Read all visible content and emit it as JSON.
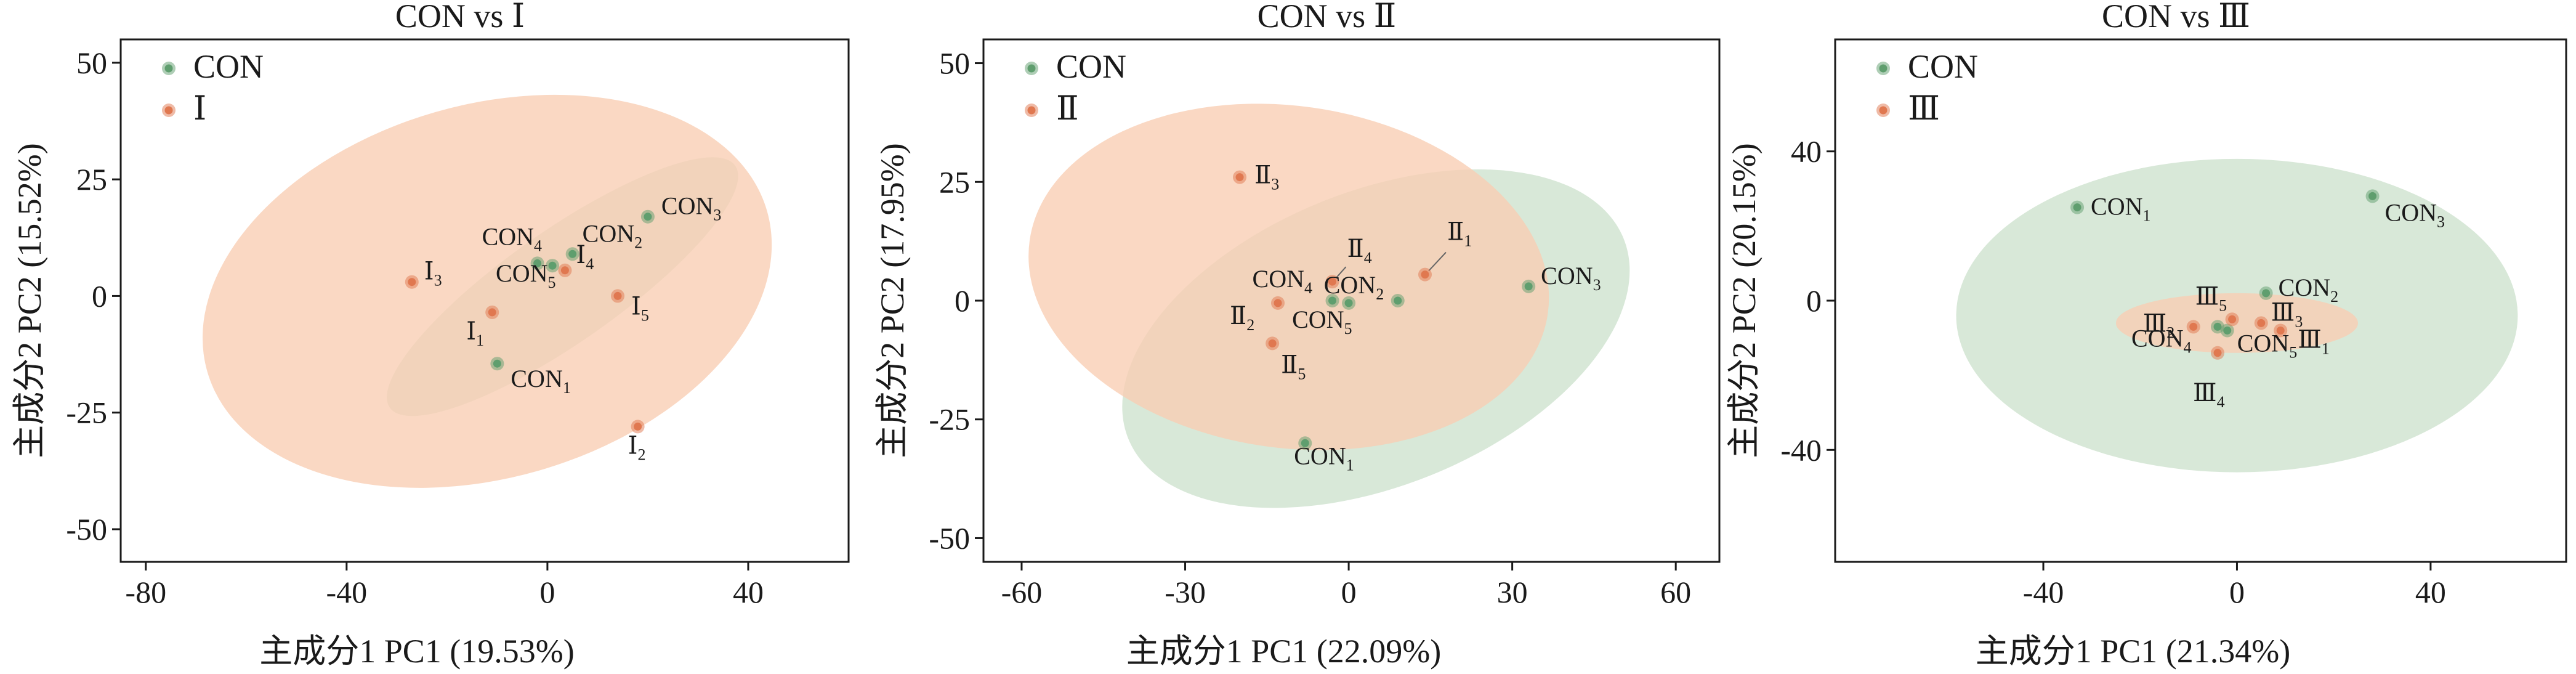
{
  "chart_data": [
    {
      "type": "scatter",
      "title": "CON vs Ⅰ",
      "xlabel": "主成分1 PC1 (19.53%)",
      "ylabel": "主成分2 PC2 (15.52%)",
      "xlim": [
        -85,
        60
      ],
      "ylim": [
        -57,
        55
      ],
      "xticks": [
        -80,
        -40,
        0,
        40
      ],
      "xtick_labels": [
        "-80",
        "-40",
        "0",
        "40"
      ],
      "yticks": [
        -50,
        -25,
        0,
        25,
        50
      ],
      "ytick_labels": [
        "-50",
        "-25",
        "0",
        "25",
        "50"
      ],
      "legend": {
        "placement": "top-left",
        "entries": [
          "CON",
          "Ⅰ"
        ]
      },
      "grid": false,
      "series": [
        {
          "name": "CON",
          "color": "#5f9e6e",
          "ellipse_color": "#cde2cd",
          "ellipse": {
            "cx": 3,
            "cy": 2,
            "rx": 42,
            "ry": 12,
            "angle_deg": 35
          },
          "points": [
            {
              "x": -10,
              "y": -14.5,
              "label": "CON",
              "sub": "1"
            },
            {
              "x": 5,
              "y": 9,
              "label": "CON",
              "sub": "2"
            },
            {
              "x": 20,
              "y": 17,
              "label": "CON",
              "sub": "3"
            },
            {
              "x": -2,
              "y": 7,
              "label": "CON",
              "sub": "4"
            },
            {
              "x": 1,
              "y": 6.5,
              "label": "CON",
              "sub": "5"
            }
          ]
        },
        {
          "name": "Ⅰ",
          "color": "#e07850",
          "ellipse_color": "#f8cdb2",
          "ellipse": {
            "cx": -12,
            "cy": 1,
            "rx": 58,
            "ry": 40,
            "angle_deg": 16
          },
          "points": [
            {
              "x": -11,
              "y": -3.5,
              "label": "Ⅰ",
              "sub": "1"
            },
            {
              "x": 18,
              "y": -28,
              "label": "Ⅰ",
              "sub": "2"
            },
            {
              "x": -27,
              "y": 3,
              "label": "Ⅰ",
              "sub": "3"
            },
            {
              "x": 3.5,
              "y": 5.5,
              "label": "Ⅰ",
              "sub": "4"
            },
            {
              "x": 14,
              "y": 0,
              "label": "Ⅰ",
              "sub": "5"
            }
          ]
        }
      ]
    },
    {
      "type": "scatter",
      "title": "CON vs Ⅱ",
      "xlabel": "主成分1 PC1 (22.09%)",
      "ylabel": "主成分2 PC2 (17.95%)",
      "xlim": [
        -67,
        68
      ],
      "ylim": [
        -55,
        55
      ],
      "xticks": [
        -60,
        -30,
        0,
        30,
        60
      ],
      "xtick_labels": [
        "-60",
        "-30",
        "0",
        "30",
        "60"
      ],
      "yticks": [
        -50,
        -25,
        0,
        25,
        50
      ],
      "ytick_labels": [
        "-50",
        "-25",
        "0",
        "25",
        "50"
      ],
      "legend": {
        "placement": "top-left",
        "entries": [
          "CON",
          "Ⅱ"
        ]
      },
      "grid": false,
      "series": [
        {
          "name": "CON",
          "color": "#5f9e6e",
          "ellipse_color": "#cde2cd",
          "ellipse": {
            "cx": 5,
            "cy": -8,
            "rx": 49,
            "ry": 31,
            "angle_deg": 22
          },
          "points": [
            {
              "x": -8,
              "y": -30,
              "label": "CON",
              "sub": "1"
            },
            {
              "x": 9,
              "y": 0,
              "label": "CON",
              "sub": "2"
            },
            {
              "x": 33,
              "y": 3,
              "label": "CON",
              "sub": "3"
            },
            {
              "x": -3,
              "y": 0,
              "label": "CON",
              "sub": "4"
            },
            {
              "x": 0,
              "y": -0.5,
              "label": "CON",
              "sub": "5"
            }
          ]
        },
        {
          "name": "Ⅱ",
          "color": "#e07850",
          "ellipse_color": "#f8cdb2",
          "ellipse": {
            "cx": -11,
            "cy": 5,
            "rx": 48,
            "ry": 36,
            "angle_deg": -8
          },
          "points": [
            {
              "x": 14,
              "y": 5.5,
              "label": "Ⅱ",
              "sub": "1"
            },
            {
              "x": -13,
              "y": -0.5,
              "label": "Ⅱ",
              "sub": "2"
            },
            {
              "x": -20,
              "y": 26,
              "label": "Ⅱ",
              "sub": "3"
            },
            {
              "x": -3,
              "y": 4,
              "label": "Ⅱ",
              "sub": "4"
            },
            {
              "x": -14,
              "y": -9,
              "label": "Ⅱ",
              "sub": "5"
            }
          ]
        }
      ]
    },
    {
      "type": "scatter",
      "title": "CON vs Ⅲ",
      "xlabel": "主成分1 PC1 (21.34%)",
      "ylabel": "主成分2 PC2 (20.15%)",
      "xlim": [
        -83,
        68
      ],
      "ylim": [
        -70,
        70
      ],
      "xticks": [
        -40,
        0,
        40
      ],
      "xtick_labels": [
        "-40",
        "0",
        "40"
      ],
      "yticks": [
        -40,
        0,
        40
      ],
      "ytick_labels": [
        "-40",
        "0",
        "40"
      ],
      "legend": {
        "placement": "top-left",
        "entries": [
          "CON",
          "Ⅲ"
        ]
      },
      "grid": false,
      "series": [
        {
          "name": "CON",
          "color": "#5f9e6e",
          "ellipse_color": "#cde2cd",
          "ellipse": {
            "cx": 0,
            "cy": -4,
            "rx": 58,
            "ry": 42,
            "angle_deg": 0
          },
          "points": [
            {
              "x": -33,
              "y": 25,
              "label": "CON",
              "sub": "1"
            },
            {
              "x": 6,
              "y": 2,
              "label": "CON",
              "sub": "2"
            },
            {
              "x": 28,
              "y": 28,
              "label": "CON",
              "sub": "3"
            },
            {
              "x": -4,
              "y": -7,
              "label": "CON",
              "sub": "4"
            },
            {
              "x": -2,
              "y": -8,
              "label": "CON",
              "sub": "5"
            }
          ]
        },
        {
          "name": "Ⅲ",
          "color": "#e07850",
          "ellipse_color": "#f8cdb2",
          "ellipse": {
            "cx": 0,
            "cy": -6,
            "rx": 25,
            "ry": 8,
            "angle_deg": 0
          },
          "points": [
            {
              "x": 9,
              "y": -8,
              "label": "Ⅲ",
              "sub": "1"
            },
            {
              "x": -9,
              "y": -7,
              "label": "Ⅲ",
              "sub": "2"
            },
            {
              "x": 5,
              "y": -6,
              "label": "Ⅲ",
              "sub": "3"
            },
            {
              "x": -4,
              "y": -14,
              "label": "Ⅲ",
              "sub": "4"
            },
            {
              "x": -1,
              "y": -5,
              "label": "Ⅲ",
              "sub": "5"
            }
          ]
        }
      ]
    }
  ]
}
